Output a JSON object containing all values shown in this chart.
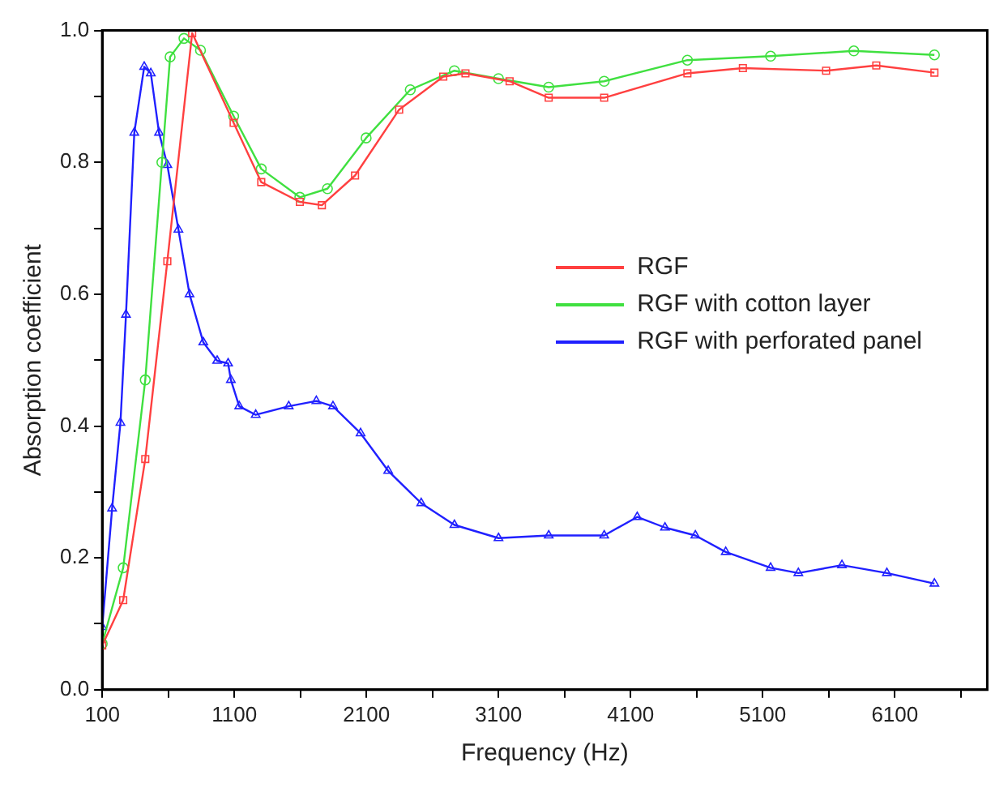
{
  "chart_data": {
    "type": "line",
    "xlabel": "Frequency (Hz)",
    "ylabel": "Absorption coefficient",
    "xlim": [
      100,
      6800
    ],
    "xticks": [
      100,
      {
        "value": 600,
        "label": null
      },
      1100,
      {
        "value": 1600,
        "label": null
      },
      2100,
      {
        "value": 2600,
        "label": null
      },
      3100,
      {
        "value": 3600,
        "label": null
      },
      4100,
      {
        "value": 4600,
        "label": null
      },
      5100,
      {
        "value": 5600,
        "label": null
      },
      6100,
      {
        "value": 6600,
        "label": null
      }
    ],
    "ylim": [
      0,
      1
    ],
    "yticks": [
      {
        "value": 0,
        "label": "0.0"
      },
      {
        "value": 0.1,
        "label": null
      },
      {
        "value": 0.2,
        "label": "0.2"
      },
      {
        "value": 0.3,
        "label": null
      },
      {
        "value": 0.4,
        "label": "0.4"
      },
      {
        "value": 0.5,
        "label": null
      },
      {
        "value": 0.6,
        "label": "0.6"
      },
      {
        "value": 0.7,
        "label": null
      },
      {
        "value": 0.8,
        "label": "0.8"
      },
      {
        "value": 0.9,
        "label": null
      },
      {
        "value": 1,
        "label": "1.0"
      }
    ],
    "grid": false,
    "legend": "right",
    "line_style": "solid",
    "series": [
      {
        "name": "RGF",
        "color": "#ff4040",
        "marker": "square",
        "x": [
          100,
          259,
          426,
          593,
          781,
          1095,
          1304,
          1596,
          1763,
          2014,
          2348,
          2682,
          2850,
          3184,
          3480,
          3900,
          4530,
          4950,
          5580,
          5960,
          6400
        ],
        "values": [
          0.067,
          0.136,
          0.35,
          0.65,
          0.996,
          0.86,
          0.77,
          0.74,
          0.735,
          0.78,
          0.88,
          0.93,
          0.935,
          0.923,
          0.898,
          0.898,
          0.935,
          0.943,
          0.939,
          0.947,
          0.936
        ]
      },
      {
        "name": "RGF with cotton layer",
        "color": "#40e040",
        "marker": "circle",
        "x": [
          100,
          259,
          426,
          552,
          614,
          719,
          844,
          1095,
          1304,
          1596,
          1805,
          2098,
          2432,
          2766,
          3100,
          3480,
          3900,
          4530,
          5160,
          5790,
          6400
        ],
        "values": [
          0.07,
          0.185,
          0.47,
          0.8,
          0.96,
          0.988,
          0.97,
          0.87,
          0.79,
          0.747,
          0.76,
          0.837,
          0.91,
          0.939,
          0.927,
          0.914,
          0.923,
          0.955,
          0.961,
          0.969,
          0.963
        ]
      },
      {
        "name": "RGF with perforated panel",
        "color": "#2020ff",
        "marker": "triangle",
        "x": [
          100,
          175,
          238,
          280,
          343,
          418,
          468,
          530,
          593,
          677,
          761,
          865,
          970,
          1053,
          1074,
          1137,
          1262,
          1512,
          1721,
          1847,
          2056,
          2265,
          2515,
          2766,
          3100,
          3480,
          3900,
          4150,
          4360,
          4590,
          4820,
          5160,
          5370,
          5700,
          6040,
          6400
        ],
        "values": [
          0.095,
          0.275,
          0.405,
          0.569,
          0.845,
          0.945,
          0.935,
          0.845,
          0.796,
          0.698,
          0.6,
          0.527,
          0.499,
          0.495,
          0.47,
          0.43,
          0.417,
          0.43,
          0.438,
          0.43,
          0.389,
          0.332,
          0.283,
          0.25,
          0.23,
          0.234,
          0.234,
          0.262,
          0.246,
          0.234,
          0.209,
          0.185,
          0.177,
          0.189,
          0.177,
          0.161
        ]
      }
    ]
  }
}
